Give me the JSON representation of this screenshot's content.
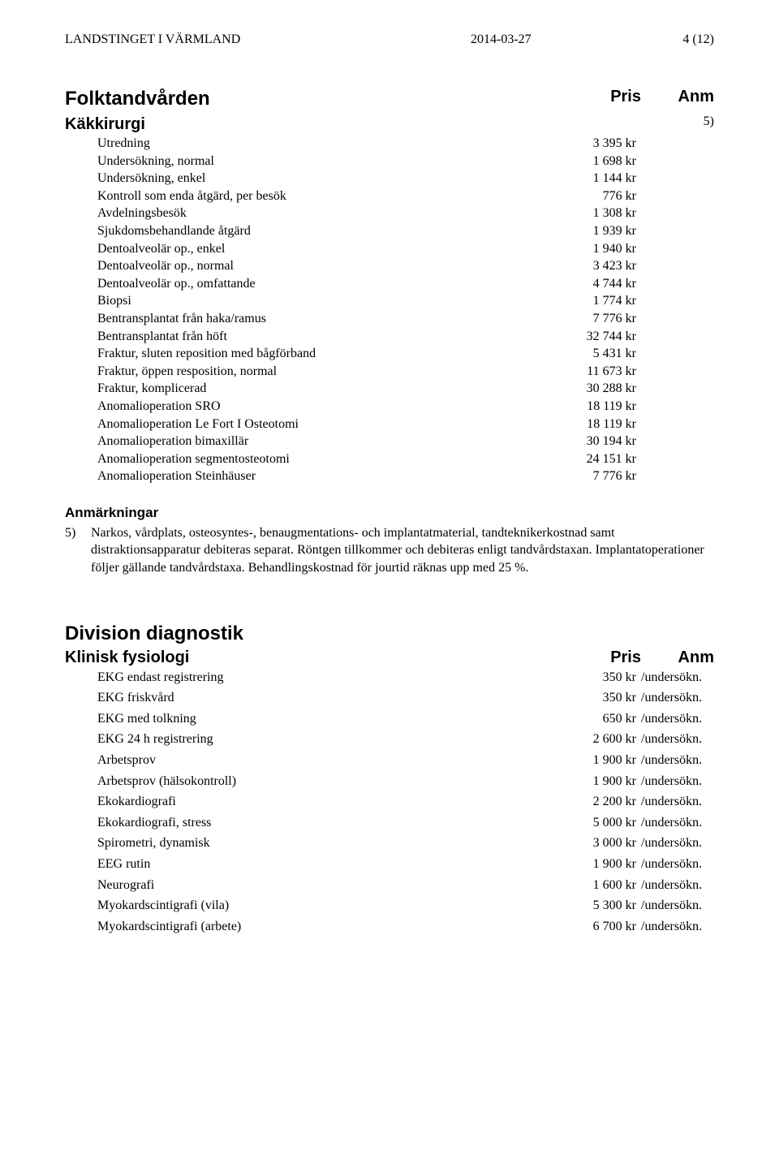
{
  "header": {
    "org": "LANDSTINGET I VÄRMLAND",
    "date": "2014-03-27",
    "page": "4 (12)"
  },
  "column_headers": {
    "price": "Pris",
    "anm": "Anm"
  },
  "sections": [
    {
      "title": "Folktandvården",
      "subsection": "Käkkirurgi",
      "anm_ref": "5)",
      "items": [
        {
          "label": "Utredning",
          "price": "3 395 kr"
        },
        {
          "label": "Undersökning, normal",
          "price": "1 698 kr"
        },
        {
          "label": "Undersökning, enkel",
          "price": "1 144 kr"
        },
        {
          "label": "Kontroll som enda åtgärd, per besök",
          "price": "776 kr"
        },
        {
          "label": "Avdelningsbesök",
          "price": "1 308 kr"
        },
        {
          "label": "Sjukdomsbehandlande åtgärd",
          "price": "1 939 kr"
        },
        {
          "label": "Dentoalveolär op., enkel",
          "price": "1 940 kr"
        },
        {
          "label": "Dentoalveolär op., normal",
          "price": "3 423 kr"
        },
        {
          "label": "Dentoalveolär op., omfattande",
          "price": "4 744 kr"
        },
        {
          "label": "Biopsi",
          "price": "1 774 kr"
        },
        {
          "label": "Bentransplantat från haka/ramus",
          "price": "7 776 kr"
        },
        {
          "label": "Bentransplantat från höft",
          "price": "32 744 kr"
        },
        {
          "label": "Fraktur, sluten reposition med bågförband",
          "price": "5 431 kr"
        },
        {
          "label": "Fraktur, öppen resposition, normal",
          "price": "11 673 kr"
        },
        {
          "label": "Fraktur, komplicerad",
          "price": "30 288 kr"
        },
        {
          "label": "Anomalioperation SRO",
          "price": "18 119 kr"
        },
        {
          "label": "Anomalioperation Le Fort I Osteotomi",
          "price": "18 119 kr"
        },
        {
          "label": "Anomalioperation bimaxillär",
          "price": "30 194 kr"
        },
        {
          "label": "Anomalioperation segmentosteotomi",
          "price": "24 151 kr"
        },
        {
          "label": "Anomalioperation Steinhäuser",
          "price": "7 776 kr"
        }
      ]
    }
  ],
  "notes": {
    "heading": "Anmärkningar",
    "entries": [
      {
        "num": "5)",
        "text": "Narkos, vårdplats, osteosyntes-, benaugmentations- och implantatmaterial, tandteknikerkostnad samt distraktionsapparatur debiteras separat. Röntgen tillkommer och debiteras enligt tandvårdstaxan. Implantatoperationer följer gällande tandvårdstaxa. Behandlingskostnad för jourtid räknas upp med 25 %."
      }
    ]
  },
  "division2": {
    "title": "Division diagnostik",
    "subsection": "Klinisk fysiologi",
    "items": [
      {
        "label": "EKG endast registrering",
        "price": "350 kr",
        "anm": "/undersökn."
      },
      {
        "label": "EKG friskvård",
        "price": "350 kr",
        "anm": "/undersökn."
      },
      {
        "label": "EKG med tolkning",
        "price": "650 kr",
        "anm": "/undersökn."
      },
      {
        "label": "EKG 24 h registrering",
        "price": "2 600 kr",
        "anm": "/undersökn."
      },
      {
        "label": "Arbetsprov",
        "price": "1 900 kr",
        "anm": "/undersökn."
      },
      {
        "label": "Arbetsprov (hälsokontroll)",
        "price": "1 900 kr",
        "anm": "/undersökn."
      },
      {
        "label": "Ekokardiografi",
        "price": "2 200 kr",
        "anm": "/undersökn."
      },
      {
        "label": "Ekokardiografi, stress",
        "price": "5 000 kr",
        "anm": "/undersökn."
      },
      {
        "label": "Spirometri, dynamisk",
        "price": "3 000 kr",
        "anm": "/undersökn."
      },
      {
        "label": "EEG rutin",
        "price": "1 900 kr",
        "anm": "/undersökn."
      },
      {
        "label": "Neurografi",
        "price": "1 600 kr",
        "anm": "/undersökn."
      },
      {
        "label": "Myokardscintigrafi (vila)",
        "price": "5 300 kr",
        "anm": "/undersökn."
      },
      {
        "label": "Myokardscintigrafi (arbete)",
        "price": "6 700 kr",
        "anm": "/undersökn."
      }
    ]
  }
}
